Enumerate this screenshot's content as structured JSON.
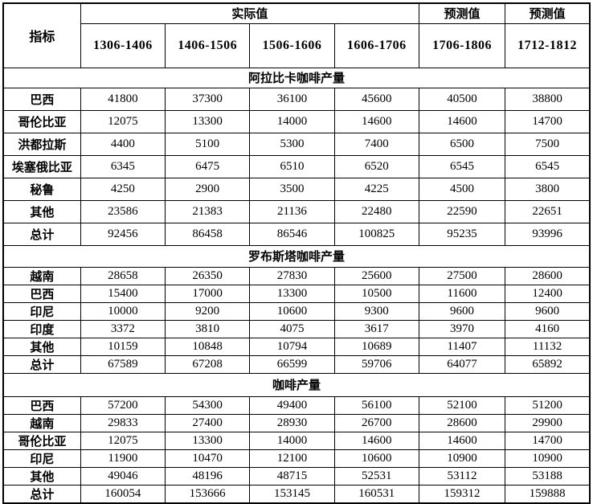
{
  "colors": {
    "band_bg": "#fbe5d6",
    "band_text": "#c05a11",
    "header_text": "#b35c1e",
    "border_color": "#000000",
    "cell_bg": "#ffffff",
    "cell_text": "#000000"
  },
  "chart_data": {
    "type": "table",
    "corner_label": "指标",
    "column_groups": [
      {
        "label": "实际值",
        "span": 4
      },
      {
        "label": "预测值",
        "span": 1
      },
      {
        "label": "预测值",
        "span": 1
      }
    ],
    "columns": [
      "1306-1406",
      "1406-1506",
      "1506-1606",
      "1606-1706",
      "1706-1806",
      "1712-1812"
    ],
    "sections": [
      {
        "title": "阿拉比卡咖啡产量",
        "rows": [
          {
            "label": "巴西",
            "values": [
              "41800",
              "37300",
              "36100",
              "45600",
              "40500",
              "38800"
            ]
          },
          {
            "label": "哥伦比亚",
            "values": [
              "12075",
              "13300",
              "14000",
              "14600",
              "14600",
              "14700"
            ]
          },
          {
            "label": "洪都拉斯",
            "values": [
              "4400",
              "5100",
              "5300",
              "7400",
              "6500",
              "7500"
            ]
          },
          {
            "label": "埃塞俄比亚",
            "values": [
              "6345",
              "6475",
              "6510",
              "6520",
              "6545",
              "6545"
            ]
          },
          {
            "label": "秘鲁",
            "values": [
              "4250",
              "2900",
              "3500",
              "4225",
              "4500",
              "3800"
            ]
          },
          {
            "label": "其他",
            "values": [
              "23586",
              "21383",
              "21136",
              "22480",
              "22590",
              "22651"
            ]
          },
          {
            "label": "总计",
            "values": [
              "92456",
              "86458",
              "86546",
              "100825",
              "95235",
              "93996"
            ]
          }
        ]
      },
      {
        "title": "罗布斯塔咖啡产量",
        "rows": [
          {
            "label": "越南",
            "values": [
              "28658",
              "26350",
              "27830",
              "25600",
              "27500",
              "28600"
            ]
          },
          {
            "label": "巴西",
            "values": [
              "15400",
              "17000",
              "13300",
              "10500",
              "11600",
              "12400"
            ]
          },
          {
            "label": "印尼",
            "values": [
              "10000",
              "9200",
              "10600",
              "9300",
              "9600",
              "9600"
            ]
          },
          {
            "label": "印度",
            "values": [
              "3372",
              "3810",
              "4075",
              "3617",
              "3970",
              "4160"
            ]
          },
          {
            "label": "其他",
            "values": [
              "10159",
              "10848",
              "10794",
              "10689",
              "11407",
              "11132"
            ]
          },
          {
            "label": "总计",
            "values": [
              "67589",
              "67208",
              "66599",
              "59706",
              "64077",
              "65892"
            ]
          }
        ]
      },
      {
        "title": "咖啡产量",
        "rows": [
          {
            "label": "巴西",
            "values": [
              "57200",
              "54300",
              "49400",
              "56100",
              "52100",
              "51200"
            ]
          },
          {
            "label": "越南",
            "values": [
              "29833",
              "27400",
              "28930",
              "26700",
              "28600",
              "29900"
            ]
          },
          {
            "label": "哥伦比亚",
            "values": [
              "12075",
              "13300",
              "14000",
              "14600",
              "14600",
              "14700"
            ]
          },
          {
            "label": "印尼",
            "values": [
              "11900",
              "10470",
              "12100",
              "10600",
              "10900",
              "10900"
            ]
          },
          {
            "label": "其他",
            "values": [
              "49046",
              "48196",
              "48715",
              "52531",
              "53112",
              "53188"
            ]
          },
          {
            "label": "总计",
            "values": [
              "160054",
              "153666",
              "153145",
              "160531",
              "159312",
              "159888"
            ]
          }
        ]
      }
    ]
  }
}
